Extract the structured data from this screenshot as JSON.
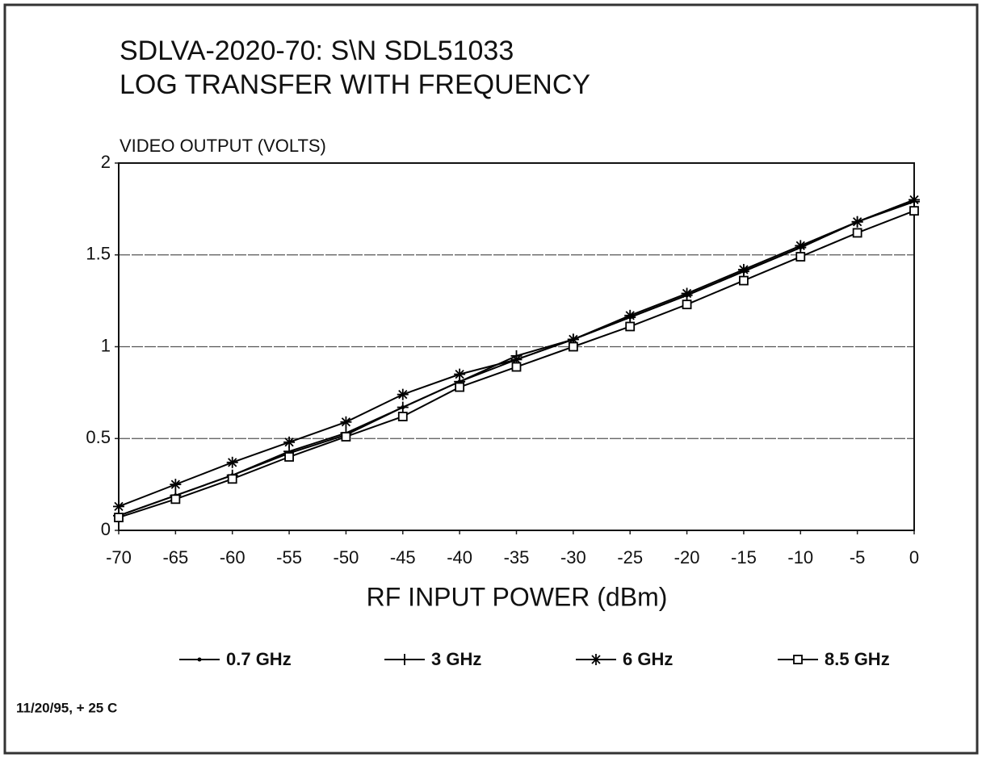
{
  "chart_data": {
    "type": "line",
    "title": [
      "SDLVA-2020-70: S\\N SDL51033",
      "LOG TRANSFER WITH FREQUENCY"
    ],
    "y_label": "VIDEO OUTPUT (VOLTS)",
    "x_label": "RF INPUT POWER (dBm)",
    "annotation": "11/20/95, + 25 C",
    "x": [
      -70,
      -65,
      -60,
      -55,
      -50,
      -45,
      -40,
      -35,
      -30,
      -25,
      -20,
      -15,
      -10,
      -5,
      0
    ],
    "series": [
      {
        "name": "0.7 GHz",
        "color": "#000000",
        "marker": "dot",
        "values": [
          0.08,
          0.19,
          0.3,
          0.42,
          0.52,
          0.67,
          0.81,
          0.93,
          1.04,
          1.16,
          1.28,
          1.41,
          1.54,
          1.68,
          1.8
        ]
      },
      {
        "name": "3 GHz",
        "color": "#000000",
        "marker": "plus",
        "values": [
          0.08,
          0.19,
          0.3,
          0.43,
          0.53,
          0.67,
          0.81,
          0.95,
          1.04,
          1.16,
          1.28,
          1.41,
          1.54,
          1.68,
          1.79
        ]
      },
      {
        "name": "6 GHz",
        "color": "#000000",
        "marker": "star",
        "values": [
          0.13,
          0.25,
          0.37,
          0.48,
          0.59,
          0.74,
          0.85,
          0.93,
          1.04,
          1.17,
          1.29,
          1.42,
          1.55,
          1.68,
          1.8
        ]
      },
      {
        "name": "8.5 GHz",
        "color": "#000000",
        "marker": "square",
        "values": [
          0.07,
          0.17,
          0.28,
          0.4,
          0.51,
          0.62,
          0.78,
          0.89,
          1.0,
          1.11,
          1.23,
          1.36,
          1.49,
          1.62,
          1.74
        ]
      }
    ],
    "xlim": [
      -70,
      0
    ],
    "xticks": [
      -70,
      -65,
      -60,
      -55,
      -50,
      -45,
      -40,
      -35,
      -30,
      -25,
      -20,
      -15,
      -10,
      -5,
      0
    ],
    "ylim": [
      0,
      2
    ],
    "yticks": [
      0,
      0.5,
      1,
      1.5,
      2
    ],
    "grid": true,
    "legend": "bottom"
  }
}
